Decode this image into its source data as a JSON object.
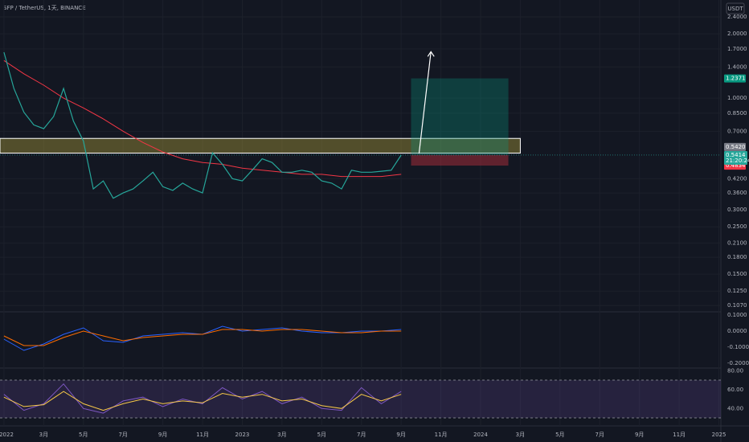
{
  "header": {
    "symbol": "SFP / TetherUS, 1天, BINANCE",
    "currency": "USDT"
  },
  "chart_data": [
    {
      "type": "price",
      "log": true,
      "xlim": [
        -0.2,
        36.1
      ],
      "ylim": [
        0.1,
        2.88
      ],
      "xticks": [
        {
          "value": 0,
          "label": "2022"
        },
        {
          "value": 2,
          "label": "3月"
        },
        {
          "value": 4,
          "label": "5月"
        },
        {
          "value": 6,
          "label": "7月"
        },
        {
          "value": 8,
          "label": "9月"
        },
        {
          "value": 10,
          "label": "11月"
        },
        {
          "value": 12,
          "label": "2023"
        },
        {
          "value": 14,
          "label": "3月"
        },
        {
          "value": 16,
          "label": "5月"
        },
        {
          "value": 18,
          "label": "7月"
        },
        {
          "value": 20,
          "label": "9月"
        },
        {
          "value": 22,
          "label": "11月"
        },
        {
          "value": 24,
          "label": "2024"
        },
        {
          "value": 26,
          "label": "3月"
        },
        {
          "value": 28,
          "label": "5月"
        },
        {
          "value": 30,
          "label": "7月"
        },
        {
          "value": 32,
          "label": "9月"
        },
        {
          "value": 34,
          "label": "11月"
        },
        {
          "value": 36,
          "label": "2025"
        }
      ],
      "yticks": [
        {
          "value": 2.4,
          "label": "2.4000"
        },
        {
          "value": 2.0,
          "label": "2.0000"
        },
        {
          "value": 1.7,
          "label": "1.7000"
        },
        {
          "value": 1.4,
          "label": "1.4000"
        },
        {
          "value": 1.0,
          "label": "1.0000"
        },
        {
          "value": 0.85,
          "label": "0.8500"
        },
        {
          "value": 0.7,
          "label": "0.7000"
        },
        {
          "value": 0.42,
          "label": "0.4200"
        },
        {
          "value": 0.36,
          "label": "0.3600"
        },
        {
          "value": 0.3,
          "label": "0.3000"
        },
        {
          "value": 0.25,
          "label": "0.2500"
        },
        {
          "value": 0.21,
          "label": "0.2100"
        },
        {
          "value": 0.18,
          "label": "0.1800"
        },
        {
          "value": 0.15,
          "label": "0.1500"
        },
        {
          "value": 0.125,
          "label": "0.1250"
        },
        {
          "value": 0.107,
          "label": "0.1070"
        }
      ],
      "x": [
        0,
        0.5,
        1,
        1.5,
        2,
        2.5,
        3,
        3.5,
        4,
        4.5,
        5,
        5.5,
        6,
        6.5,
        7,
        7.5,
        8,
        8.5,
        9,
        9.5,
        10,
        10.5,
        11,
        11.5,
        12,
        12.5,
        13,
        13.5,
        14,
        14.5,
        15,
        15.5,
        16,
        16.5,
        17,
        17.5,
        18,
        18.5,
        19,
        19.5,
        20
      ],
      "series": [
        {
          "color": "#26a69a",
          "values": [
            1.64,
            1.11,
            0.86,
            0.75,
            0.72,
            0.82,
            1.11,
            0.78,
            0.63,
            0.376,
            0.41,
            0.34,
            0.36,
            0.376,
            0.41,
            0.45,
            0.385,
            0.37,
            0.4,
            0.376,
            0.36,
            0.555,
            0.49,
            0.42,
            0.41,
            0.46,
            0.52,
            0.5,
            0.45,
            0.45,
            0.46,
            0.45,
            0.41,
            0.4,
            0.376,
            0.46,
            0.45,
            0.45,
            0.455,
            0.46,
            0.5414
          ]
        }
      ],
      "ma": {
        "color": "#f23645",
        "x": [
          0,
          1,
          2,
          3,
          4,
          5,
          6,
          7,
          8,
          9,
          10,
          11,
          12,
          13,
          14,
          15,
          16,
          17,
          18,
          19,
          20
        ],
        "values": [
          1.5,
          1.3,
          1.15,
          1.0,
          0.9,
          0.8,
          0.7,
          0.62,
          0.56,
          0.52,
          0.5,
          0.49,
          0.47,
          0.46,
          0.45,
          0.44,
          0.44,
          0.43,
          0.43,
          0.43,
          0.44
        ]
      },
      "zone": {
        "low": 0.553,
        "high": 0.648,
        "x_end": 26
      },
      "position": {
        "x_start": 20.5,
        "x_end": 25.4,
        "target": 1.2371,
        "target_label": "1.2371",
        "entry": 0.542,
        "entry_label": "0.5420",
        "stop": 0.4834,
        "stop_label": "0.4834"
      },
      "arrow": {
        "x": [
          20.9,
          21.5
        ],
        "y": [
          0.55,
          1.65
        ]
      },
      "last": {
        "value": 0.5414,
        "label": "0.5414",
        "countdown": "21:20:24"
      }
    },
    {
      "type": "macd",
      "ylim": [
        -0.23,
        0.12
      ],
      "yticks": [
        {
          "value": 0.1,
          "label": "0.1000"
        },
        {
          "value": 0,
          "label": "0.0000"
        },
        {
          "value": -0.1,
          "label": "-0.1000"
        },
        {
          "value": -0.2,
          "label": "-0.2000"
        }
      ],
      "x": [
        0,
        1,
        2,
        3,
        4,
        5,
        6,
        7,
        8,
        9,
        10,
        11,
        12,
        13,
        14,
        15,
        16,
        17,
        18,
        19,
        20
      ],
      "series": [
        {
          "color": "#2962ff",
          "values": [
            -0.05,
            -0.12,
            -0.08,
            -0.02,
            0.02,
            -0.06,
            -0.07,
            -0.03,
            -0.02,
            -0.01,
            -0.02,
            0.03,
            0.0,
            0.01,
            0.02,
            0.0,
            -0.01,
            -0.01,
            0.0,
            0.0,
            0.01
          ]
        },
        {
          "color": "#ff6d00",
          "values": [
            -0.03,
            -0.09,
            -0.09,
            -0.04,
            0.0,
            -0.03,
            -0.06,
            -0.04,
            -0.03,
            -0.02,
            -0.02,
            0.01,
            0.01,
            0.0,
            0.01,
            0.01,
            0.0,
            -0.01,
            -0.01,
            0.0,
            0.0
          ]
        }
      ]
    },
    {
      "type": "rsi",
      "ylim": [
        21.5,
        82.8
      ],
      "bands": [
        70,
        30
      ],
      "yticks": [
        {
          "value": 80,
          "label": "80.00"
        },
        {
          "value": 60,
          "label": "60.00"
        },
        {
          "value": 40,
          "label": "40.00"
        }
      ],
      "x": [
        0,
        1,
        2,
        3,
        4,
        5,
        6,
        7,
        8,
        9,
        10,
        11,
        12,
        13,
        14,
        15,
        16,
        17,
        18,
        19,
        20
      ],
      "series": [
        {
          "color": "#7e57c2",
          "values": [
            55,
            38,
            45,
            66,
            40,
            35,
            48,
            52,
            42,
            50,
            45,
            62,
            50,
            58,
            45,
            52,
            40,
            38,
            62,
            45,
            58
          ]
        },
        {
          "color": "#f7c948",
          "values": [
            52,
            42,
            44,
            58,
            45,
            38,
            45,
            50,
            45,
            48,
            46,
            56,
            52,
            55,
            48,
            50,
            43,
            40,
            55,
            48,
            55
          ]
        }
      ]
    }
  ]
}
